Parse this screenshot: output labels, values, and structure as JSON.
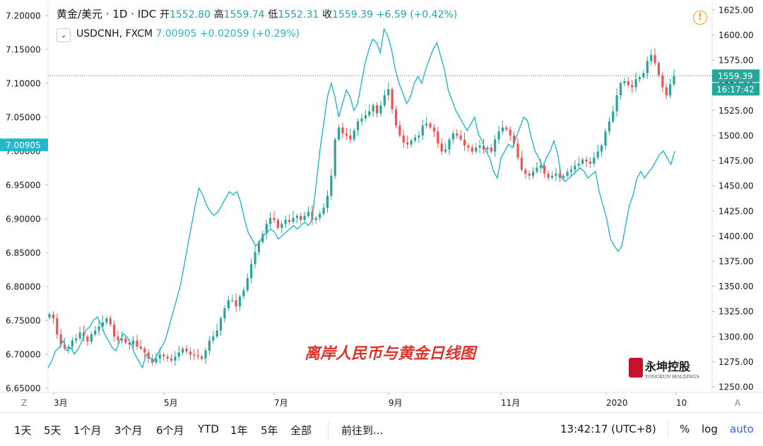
{
  "header": {
    "symbol": "黄金/美元 · 1D · IDC",
    "open_label": "开",
    "open": "1552.80",
    "high_label": "高",
    "high": "1559.74",
    "low_label": "低",
    "low": "1552.31",
    "close_label": "收",
    "close": "1559.39",
    "change": "+6.59 (+0.42%)"
  },
  "overlay": {
    "collapse_icon": "chevron-down",
    "symbol": "USDCNH, FXCM",
    "value": "7.00905",
    "change": "+0.02059 (+0.29%)"
  },
  "chart_title": "离岸人民币与黄金日线图",
  "watermark": {
    "name": "永坤控股",
    "sub": "YONGKUN HOLDINGS"
  },
  "price_label": "1559.39",
  "countdown_label": "16:17:42",
  "left_value_label": "7.00905",
  "axis_buttons": {
    "left": "Z",
    "right": "A"
  },
  "toolbar": {
    "ranges": [
      "1天",
      "5天",
      "1个月",
      "3个月",
      "6个月",
      "YTD",
      "1年",
      "5年",
      "全部"
    ],
    "goto": "前往到...",
    "time": "13:42:17 (UTC+8)",
    "percent": "%",
    "log": "log",
    "auto": "auto"
  },
  "colors": {
    "up": "#26a69a",
    "down": "#ef5350",
    "overlay": "#22b8cc",
    "accent": "#2962ff"
  },
  "chart_data": {
    "type": "line",
    "x_ticks": [
      "3月",
      "5月",
      "7月",
      "9月",
      "11月",
      "2020",
      "10"
    ],
    "right_axis": {
      "ticks": [
        "1625.00",
        "1600.00",
        "1575.00",
        "1550.00",
        "1525.00",
        "1500.00",
        "1475.00",
        "1450.00",
        "1425.00",
        "1400.00",
        "1375.00",
        "1350.00",
        "1325.00",
        "1300.00",
        "1275.00",
        "1250.00"
      ],
      "range": [
        1250,
        1625
      ]
    },
    "left_axis": {
      "ticks": [
        "7.20000",
        "7.15000",
        "7.10000",
        "7.05000",
        "7.00000",
        "6.95000",
        "6.90000",
        "6.85000",
        "6.80000",
        "6.75000",
        "6.70000",
        "6.65000"
      ],
      "range": [
        6.65,
        7.2
      ]
    },
    "series": [
      {
        "name": "黄金/美元",
        "axis": "right",
        "style": "candlestick",
        "values": [
          1322,
          1318,
          1302,
          1292,
          1288,
          1290,
          1296,
          1298,
          1304,
          1300,
          1295,
          1302,
          1306,
          1310,
          1314,
          1318,
          1312,
          1300,
          1296,
          1298,
          1294,
          1292,
          1296,
          1290,
          1288,
          1284,
          1278,
          1274,
          1278,
          1282,
          1280,
          1278,
          1276,
          1280,
          1284,
          1288,
          1285,
          1282,
          1281,
          1280,
          1278,
          1286,
          1296,
          1300,
          1306,
          1318,
          1328,
          1336,
          1336,
          1330,
          1340,
          1346,
          1358,
          1372,
          1384,
          1394,
          1402,
          1412,
          1418,
          1416,
          1408,
          1412,
          1416,
          1414,
          1418,
          1420,
          1416,
          1420,
          1424,
          1416,
          1418,
          1422,
          1428,
          1440,
          1460,
          1496,
          1508,
          1502,
          1500,
          1496,
          1505,
          1514,
          1517,
          1520,
          1524,
          1530,
          1522,
          1530,
          1540,
          1546,
          1526,
          1510,
          1500,
          1493,
          1491,
          1495,
          1498,
          1500,
          1510,
          1512,
          1508,
          1504,
          1492,
          1484,
          1486,
          1496,
          1502,
          1500,
          1496,
          1490,
          1488,
          1484,
          1488,
          1490,
          1486,
          1488,
          1484,
          1496,
          1504,
          1508,
          1506,
          1500,
          1492,
          1478,
          1466,
          1462,
          1460,
          1464,
          1468,
          1470,
          1462,
          1458,
          1460,
          1462,
          1458,
          1460,
          1464,
          1466,
          1470,
          1472,
          1476,
          1474,
          1472,
          1478,
          1484,
          1490,
          1504,
          1514,
          1524,
          1540,
          1552,
          1554,
          1550,
          1548,
          1556,
          1558,
          1562,
          1574,
          1580,
          1572,
          1560,
          1548,
          1540,
          1551,
          1559
        ]
      },
      {
        "name": "USDCNH, FXCM",
        "axis": "left",
        "style": "line",
        "values": [
          6.68,
          6.69,
          6.705,
          6.71,
          6.72,
          6.705,
          6.71,
          6.7,
          6.708,
          6.72,
          6.735,
          6.74,
          6.75,
          6.755,
          6.745,
          6.73,
          6.72,
          6.71,
          6.705,
          6.72,
          6.73,
          6.725,
          6.715,
          6.7,
          6.69,
          6.68,
          6.7,
          6.695,
          6.69,
          6.7,
          6.71,
          6.72,
          6.74,
          6.76,
          6.78,
          6.8,
          6.83,
          6.86,
          6.89,
          6.92,
          6.945,
          6.935,
          6.92,
          6.91,
          6.905,
          6.91,
          6.92,
          6.93,
          6.94,
          6.935,
          6.94,
          6.925,
          6.9,
          6.88,
          6.87,
          6.86,
          6.865,
          6.875,
          6.88,
          6.885,
          6.88,
          6.87,
          6.875,
          6.88,
          6.885,
          6.89,
          6.885,
          6.89,
          6.895,
          6.89,
          6.9,
          6.95,
          7.0,
          7.04,
          7.08,
          7.1,
          7.08,
          7.05,
          7.07,
          7.09,
          7.08,
          7.06,
          7.07,
          7.1,
          7.13,
          7.15,
          7.165,
          7.16,
          7.145,
          7.18,
          7.17,
          7.15,
          7.12,
          7.1,
          7.085,
          7.07,
          7.08,
          7.1,
          7.11,
          7.1,
          7.12,
          7.135,
          7.15,
          7.16,
          7.14,
          7.12,
          7.09,
          7.075,
          7.06,
          7.05,
          7.04,
          7.03,
          7.04,
          7.05,
          7.025,
          7.015,
          7.0,
          6.99,
          6.97,
          6.96,
          6.99,
          7.0,
          7.01,
          7.005,
          7.02,
          7.035,
          7.05,
          7.045,
          7.02,
          7.0,
          6.99,
          6.975,
          6.99,
          7.0,
          7.015,
          6.995,
          6.96,
          6.955,
          6.96,
          6.965,
          6.97,
          6.975,
          6.97,
          6.96,
          6.965,
          6.97,
          6.94,
          6.92,
          6.9,
          6.87,
          6.86,
          6.852,
          6.86,
          6.89,
          6.92,
          6.935,
          6.96,
          6.97,
          6.96,
          6.968,
          6.975,
          6.985,
          6.995,
          7.0,
          6.99,
          6.98,
          7.0
        ]
      }
    ]
  }
}
